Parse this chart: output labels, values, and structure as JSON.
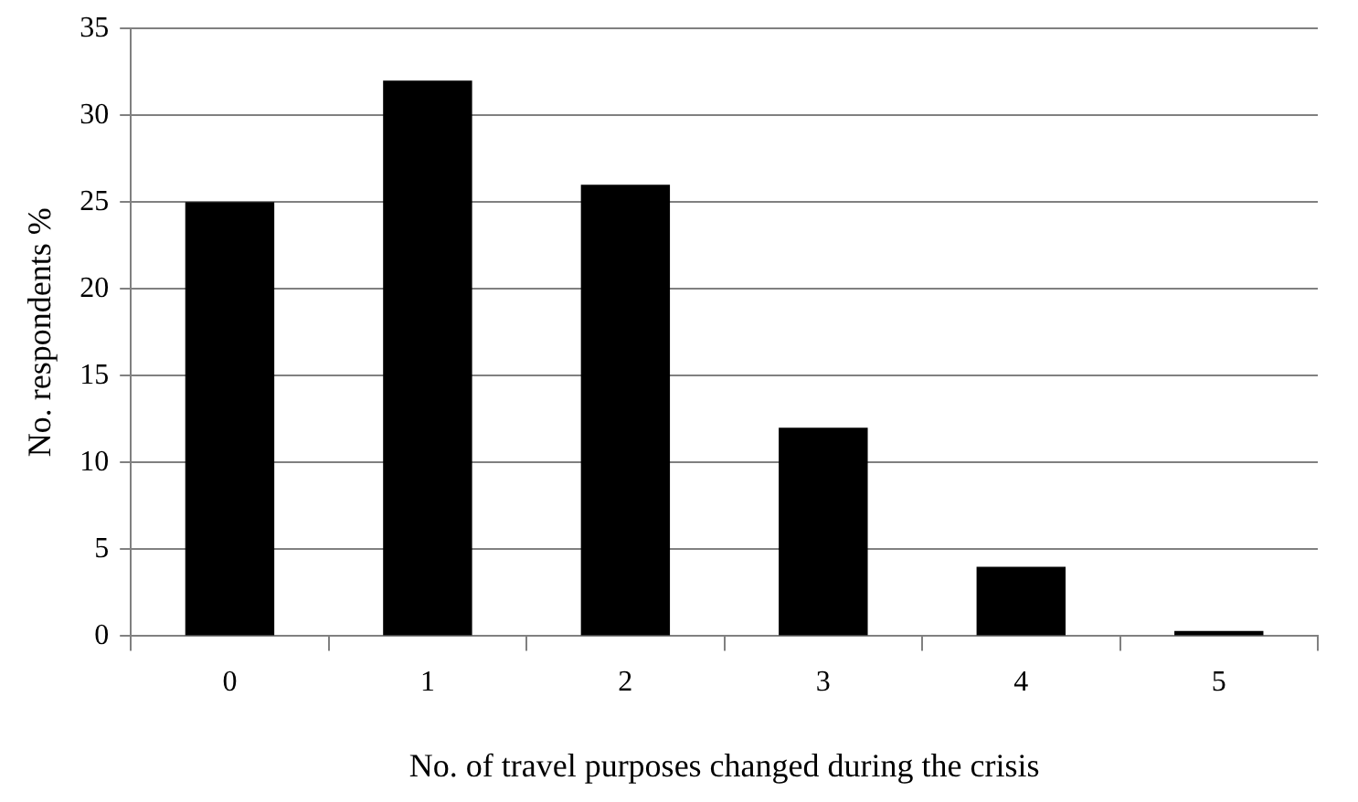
{
  "chart_data": {
    "type": "bar",
    "xlabel": "No. of travel purposes changed during the crisis",
    "ylabel": "No. respondents %",
    "categories": [
      "0",
      "1",
      "2",
      "3",
      "4",
      "5"
    ],
    "values": [
      25,
      32,
      26,
      12,
      4,
      0.3
    ],
    "color": "#000000",
    "ylim": [
      0,
      35
    ],
    "yticks": [
      0,
      5,
      10,
      15,
      20,
      25,
      30,
      35
    ],
    "grid": "y"
  }
}
